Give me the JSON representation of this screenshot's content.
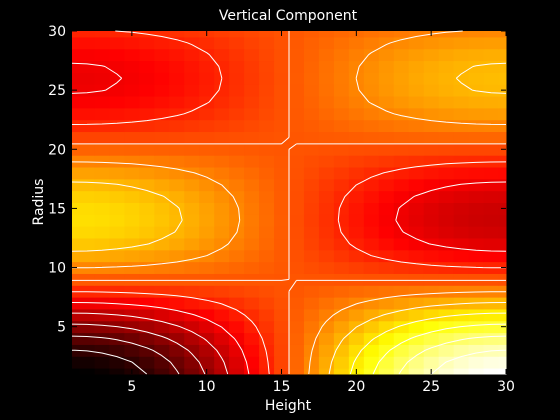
{
  "chart_data": {
    "type": "heatmap",
    "title": "Vertical Component",
    "xlabel": "Height",
    "ylabel": "Radius",
    "xlim": [
      1,
      30
    ],
    "ylim": [
      1,
      30
    ],
    "x_ticks": [
      5,
      10,
      15,
      20,
      25,
      30
    ],
    "y_ticks": [
      5,
      10,
      15,
      20,
      25,
      30
    ],
    "grid": "off",
    "colormap": "hot",
    "contour_color": "#ffffff",
    "background": "#000000",
    "grid_size": [
      30,
      30
    ],
    "field_features": [
      {
        "x": 2,
        "y": 1,
        "level": "minimum"
      },
      {
        "x": 29,
        "y": 1,
        "level": "maximum"
      },
      {
        "x": 2,
        "y": 17,
        "level": "high"
      },
      {
        "x": 29,
        "y": 17,
        "level": "low"
      },
      {
        "x": 3,
        "y": 30,
        "level": "low"
      },
      {
        "x": 29,
        "y": 30,
        "level": "high"
      }
    ]
  }
}
